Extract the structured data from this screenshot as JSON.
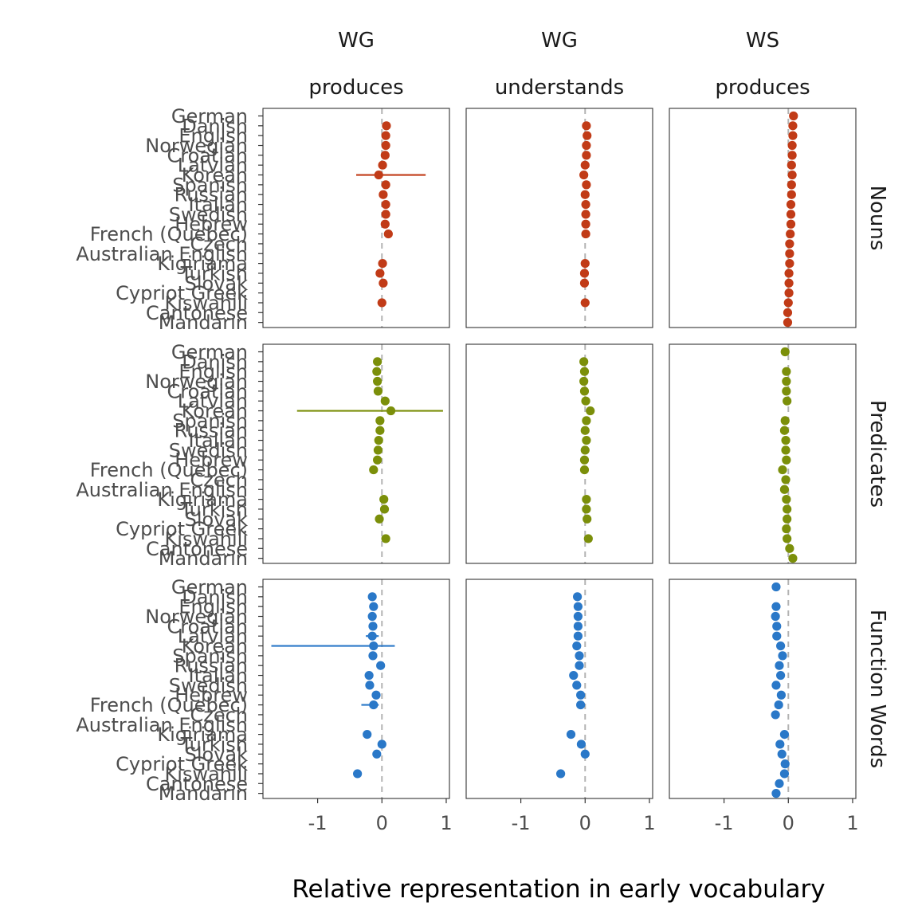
{
  "chart_data": {
    "type": "scatter",
    "xlabel": "Relative representation in early vocabulary",
    "xlim": [
      -1.85,
      1.05
    ],
    "xticks": [
      -1,
      0,
      1
    ],
    "xtick_labels": [
      "-1",
      "0",
      "1"
    ],
    "columns": [
      {
        "line1": "WG",
        "line2": "produces"
      },
      {
        "line1": "WG",
        "line2": "understands"
      },
      {
        "line1": "WS",
        "line2": "produces"
      }
    ],
    "rows": [
      {
        "label": "Nouns",
        "color": "#C13B17"
      },
      {
        "label": "Predicates",
        "color": "#7B8F0A"
      },
      {
        "label": "Function Words",
        "color": "#2A78C8"
      }
    ],
    "languages": [
      "German",
      "Danish",
      "English",
      "Norwegian",
      "Croatian",
      "Latvian",
      "Korean",
      "Spanish",
      "Russian",
      "Italian",
      "Swedish",
      "Hebrew",
      "French (Quebec)",
      "Czech",
      "Australian English",
      "Kigiriama",
      "Turkish",
      "Slovak",
      "Cypriot Greek",
      "Kiswahili",
      "Cantonese",
      "Mandarin"
    ],
    "panels": [
      [
        [
          null,
          0.07,
          0.06,
          0.06,
          0.05,
          0.01,
          -0.05,
          0.06,
          0.02,
          0.06,
          0.06,
          0.05,
          0.1,
          null,
          null,
          0.01,
          -0.03,
          0.02,
          null,
          0.0,
          null,
          null
        ],
        [
          null,
          0.02,
          0.03,
          0.02,
          0.02,
          0.0,
          -0.02,
          0.02,
          0.0,
          0.01,
          0.01,
          0.01,
          0.01,
          null,
          null,
          0.0,
          -0.01,
          -0.01,
          null,
          0.0,
          null,
          null
        ],
        [
          0.08,
          0.07,
          0.07,
          0.06,
          0.06,
          0.05,
          0.06,
          0.05,
          0.05,
          0.04,
          0.04,
          0.04,
          0.03,
          0.02,
          0.02,
          0.02,
          0.01,
          0.01,
          0.01,
          0.0,
          -0.01,
          -0.01
        ]
      ],
      [
        [
          null,
          -0.07,
          -0.08,
          -0.07,
          -0.06,
          0.05,
          0.14,
          -0.03,
          -0.03,
          -0.05,
          -0.06,
          -0.07,
          -0.13,
          null,
          null,
          0.03,
          0.04,
          -0.04,
          null,
          0.06,
          null,
          null
        ],
        [
          null,
          -0.02,
          -0.01,
          -0.02,
          -0.01,
          0.01,
          0.08,
          0.02,
          0.0,
          0.02,
          0.0,
          -0.01,
          -0.01,
          null,
          null,
          0.02,
          0.02,
          0.03,
          null,
          0.05,
          null,
          null
        ],
        [
          -0.05,
          null,
          -0.03,
          -0.03,
          -0.03,
          -0.02,
          null,
          -0.05,
          -0.06,
          -0.04,
          -0.04,
          -0.03,
          -0.09,
          -0.04,
          -0.06,
          -0.03,
          -0.02,
          -0.02,
          -0.03,
          -0.02,
          0.02,
          0.07
        ]
      ],
      [
        [
          null,
          -0.15,
          -0.13,
          -0.15,
          -0.14,
          -0.15,
          -0.13,
          -0.14,
          -0.02,
          -0.2,
          -0.19,
          -0.09,
          -0.13,
          null,
          null,
          -0.23,
          0.0,
          -0.08,
          null,
          -0.38,
          null,
          null
        ],
        [
          null,
          -0.12,
          -0.11,
          -0.11,
          -0.11,
          -0.11,
          -0.13,
          -0.09,
          -0.09,
          -0.18,
          -0.13,
          -0.07,
          -0.07,
          null,
          null,
          -0.22,
          -0.06,
          0.0,
          null,
          -0.38,
          null,
          null
        ],
        [
          -0.19,
          null,
          -0.19,
          -0.2,
          -0.18,
          -0.18,
          -0.12,
          -0.09,
          -0.14,
          -0.12,
          -0.19,
          -0.11,
          -0.15,
          -0.2,
          null,
          -0.06,
          -0.13,
          -0.1,
          -0.05,
          -0.06,
          -0.14,
          -0.19
        ]
      ]
    ],
    "error_bars": [
      {
        "row": 0,
        "col": 0,
        "language": "Korean",
        "low": -0.4,
        "high": 0.68
      },
      {
        "row": 1,
        "col": 0,
        "language": "Korean",
        "low": -1.32,
        "high": 0.95
      },
      {
        "row": 2,
        "col": 0,
        "language": "Korean",
        "low": -1.72,
        "high": 0.2
      },
      {
        "row": 2,
        "col": 0,
        "language": "Latvian",
        "low": -0.25,
        "high": -0.05
      },
      {
        "row": 2,
        "col": 0,
        "language": "French (Quebec)",
        "low": -0.32,
        "high": -0.05
      }
    ],
    "grid": false,
    "legend": "none"
  }
}
